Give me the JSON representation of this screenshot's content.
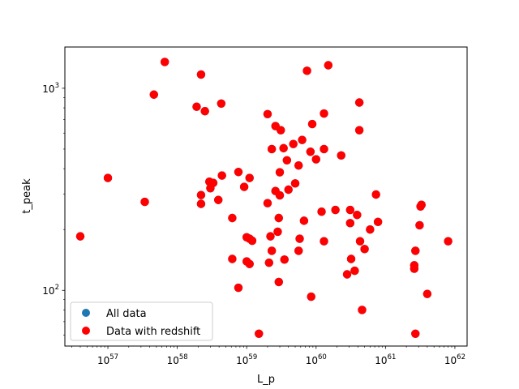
{
  "chart_data": {
    "type": "scatter",
    "title": "",
    "xlabel": "L_p",
    "ylabel": "t_peak",
    "xscale": "log",
    "yscale": "log",
    "xlim": [
      2.4e+56,
      1.5e+62
    ],
    "ylim": [
      53,
      1600
    ],
    "grid": false,
    "legend_position": "lower-left",
    "x_ticks": [
      {
        "value": 1e+57,
        "base": "10",
        "exp": "57"
      },
      {
        "value": 1e+58,
        "base": "10",
        "exp": "58"
      },
      {
        "value": 1e+59,
        "base": "10",
        "exp": "59"
      },
      {
        "value": 1e+60,
        "base": "10",
        "exp": "60"
      },
      {
        "value": 1e+61,
        "base": "10",
        "exp": "61"
      },
      {
        "value": 1e+62,
        "base": "10",
        "exp": "62"
      }
    ],
    "y_ticks": [
      {
        "value": 100,
        "base": "10",
        "exp": "2"
      },
      {
        "value": 1000,
        "base": "10",
        "exp": "3"
      }
    ],
    "series": [
      {
        "name": "All data",
        "color": "#1f77b4",
        "points": [
          [
            4e+56,
            185
          ],
          [
            1e+57,
            360
          ],
          [
            3.4e+57,
            274
          ],
          [
            4.6e+57,
            930
          ],
          [
            6.6e+57,
            1350
          ],
          [
            1.9e+58,
            810
          ],
          [
            2.2e+58,
            1170
          ],
          [
            2.5e+58,
            770
          ],
          [
            2.2e+58,
            296
          ],
          [
            2.2e+58,
            268
          ],
          [
            2.9e+58,
            345
          ],
          [
            3e+58,
            320
          ],
          [
            3.3e+58,
            340
          ],
          [
            3.9e+58,
            280
          ],
          [
            4.3e+58,
            840
          ],
          [
            4.4e+58,
            370
          ],
          [
            6.2e+58,
            228
          ],
          [
            6.2e+58,
            143
          ],
          [
            7.6e+58,
            385
          ],
          [
            7.6e+58,
            103
          ],
          [
            9.2e+58,
            325
          ],
          [
            1e+59,
            183
          ],
          [
            1.1e+59,
            180
          ],
          [
            1e+59,
            139
          ],
          [
            1.1e+59,
            135
          ],
          [
            1.1e+59,
            360
          ],
          [
            1.2e+59,
            176
          ],
          [
            1.5e+59,
            61
          ],
          [
            2e+59,
            745
          ],
          [
            2e+59,
            270
          ],
          [
            2.2e+59,
            185
          ],
          [
            2.1e+59,
            137
          ],
          [
            2.3e+59,
            500
          ],
          [
            2.3e+59,
            157
          ],
          [
            2.6e+59,
            650
          ],
          [
            2.6e+59,
            310
          ],
          [
            2.8e+59,
            195
          ],
          [
            2.9e+59,
            110
          ],
          [
            2.9e+59,
            228
          ],
          [
            3e+59,
            384
          ],
          [
            3e+59,
            295
          ],
          [
            3.1e+59,
            620
          ],
          [
            3.4e+59,
            505
          ],
          [
            3.5e+59,
            142
          ],
          [
            3.8e+59,
            440
          ],
          [
            4e+59,
            315
          ],
          [
            4.7e+59,
            530
          ],
          [
            5e+59,
            338
          ],
          [
            5.6e+59,
            415
          ],
          [
            5.8e+59,
            180
          ],
          [
            5.6e+59,
            157
          ],
          [
            6.3e+59,
            555
          ],
          [
            6.7e+59,
            221
          ],
          [
            7.4e+59,
            1220
          ],
          [
            8.3e+59,
            485
          ],
          [
            8.5e+59,
            93
          ],
          [
            8.8e+59,
            665
          ],
          [
            1e+60,
            445
          ],
          [
            1.2e+60,
            245
          ],
          [
            1.3e+60,
            500
          ],
          [
            1.3e+60,
            175
          ],
          [
            1.3e+60,
            750
          ],
          [
            1.5e+60,
            1300
          ],
          [
            1.9e+60,
            250
          ],
          [
            2.3e+60,
            465
          ],
          [
            2.8e+60,
            120
          ],
          [
            3.1e+60,
            250
          ],
          [
            3.1e+60,
            215
          ],
          [
            3.2e+60,
            143
          ],
          [
            3.6e+60,
            125
          ],
          [
            3.9e+60,
            236
          ],
          [
            4.2e+60,
            850
          ],
          [
            4.2e+60,
            620
          ],
          [
            4.3e+60,
            175
          ],
          [
            4.6e+60,
            80
          ],
          [
            5e+60,
            160
          ],
          [
            6e+60,
            200
          ],
          [
            7.3e+60,
            298
          ],
          [
            7.8e+60,
            218
          ],
          [
            2.6e+61,
            133
          ],
          [
            2.6e+61,
            128
          ],
          [
            2.7e+61,
            157
          ],
          [
            2.7e+61,
            61
          ],
          [
            3.1e+61,
            210
          ],
          [
            3.2e+61,
            260
          ],
          [
            3.3e+61,
            265
          ],
          [
            4e+61,
            96
          ],
          [
            8e+61,
            175
          ]
        ]
      },
      {
        "name": "Data with redshift",
        "color": "#ff0000",
        "points": [
          [
            4e+56,
            185
          ],
          [
            1e+57,
            360
          ],
          [
            3.4e+57,
            274
          ],
          [
            4.6e+57,
            930
          ],
          [
            6.6e+57,
            1350
          ],
          [
            1.9e+58,
            810
          ],
          [
            2.2e+58,
            1170
          ],
          [
            2.5e+58,
            770
          ],
          [
            2.2e+58,
            296
          ],
          [
            2.2e+58,
            268
          ],
          [
            2.9e+58,
            345
          ],
          [
            3e+58,
            320
          ],
          [
            3.3e+58,
            340
          ],
          [
            3.9e+58,
            280
          ],
          [
            4.3e+58,
            840
          ],
          [
            4.4e+58,
            370
          ],
          [
            6.2e+58,
            228
          ],
          [
            6.2e+58,
            143
          ],
          [
            7.6e+58,
            385
          ],
          [
            7.6e+58,
            103
          ],
          [
            9.2e+58,
            325
          ],
          [
            1e+59,
            183
          ],
          [
            1.1e+59,
            180
          ],
          [
            1e+59,
            139
          ],
          [
            1.1e+59,
            135
          ],
          [
            1.1e+59,
            360
          ],
          [
            1.2e+59,
            176
          ],
          [
            1.5e+59,
            61
          ],
          [
            2e+59,
            745
          ],
          [
            2e+59,
            270
          ],
          [
            2.2e+59,
            185
          ],
          [
            2.1e+59,
            137
          ],
          [
            2.3e+59,
            500
          ],
          [
            2.3e+59,
            157
          ],
          [
            2.6e+59,
            650
          ],
          [
            2.6e+59,
            310
          ],
          [
            2.8e+59,
            195
          ],
          [
            2.9e+59,
            110
          ],
          [
            2.9e+59,
            228
          ],
          [
            3e+59,
            384
          ],
          [
            3e+59,
            295
          ],
          [
            3.1e+59,
            620
          ],
          [
            3.4e+59,
            505
          ],
          [
            3.5e+59,
            142
          ],
          [
            3.8e+59,
            440
          ],
          [
            4e+59,
            315
          ],
          [
            4.7e+59,
            530
          ],
          [
            5e+59,
            338
          ],
          [
            5.6e+59,
            415
          ],
          [
            5.8e+59,
            180
          ],
          [
            5.6e+59,
            157
          ],
          [
            6.3e+59,
            555
          ],
          [
            6.7e+59,
            221
          ],
          [
            7.4e+59,
            1220
          ],
          [
            8.3e+59,
            485
          ],
          [
            8.5e+59,
            93
          ],
          [
            8.8e+59,
            665
          ],
          [
            1e+60,
            445
          ],
          [
            1.2e+60,
            245
          ],
          [
            1.3e+60,
            500
          ],
          [
            1.3e+60,
            175
          ],
          [
            1.3e+60,
            750
          ],
          [
            1.5e+60,
            1300
          ],
          [
            1.9e+60,
            250
          ],
          [
            2.3e+60,
            465
          ],
          [
            2.8e+60,
            120
          ],
          [
            3.1e+60,
            250
          ],
          [
            3.1e+60,
            215
          ],
          [
            3.2e+60,
            143
          ],
          [
            3.6e+60,
            125
          ],
          [
            3.9e+60,
            236
          ],
          [
            4.2e+60,
            850
          ],
          [
            4.2e+60,
            620
          ],
          [
            4.3e+60,
            175
          ],
          [
            4.6e+60,
            80
          ],
          [
            5e+60,
            160
          ],
          [
            6e+60,
            200
          ],
          [
            7.3e+60,
            298
          ],
          [
            7.8e+60,
            218
          ],
          [
            2.6e+61,
            133
          ],
          [
            2.6e+61,
            128
          ],
          [
            2.7e+61,
            157
          ],
          [
            2.7e+61,
            61
          ],
          [
            3.1e+61,
            210
          ],
          [
            3.2e+61,
            260
          ],
          [
            3.3e+61,
            265
          ],
          [
            4e+61,
            96
          ],
          [
            8e+61,
            175
          ]
        ]
      }
    ]
  }
}
